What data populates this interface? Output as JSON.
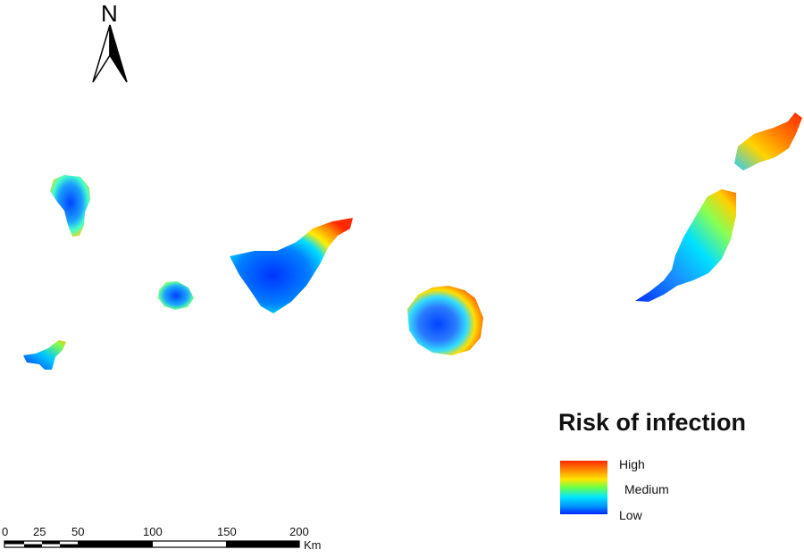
{
  "north_arrow": {
    "letter": "N",
    "icon": "north-arrow-icon"
  },
  "legend": {
    "title": "Risk of infection",
    "high": "High",
    "medium": "Medium",
    "low": "Low",
    "ramp_colors": [
      "#ff2a00",
      "#ff8c00",
      "#ffe600",
      "#6cff4a",
      "#00e6ff",
      "#0094ff",
      "#0026ff"
    ]
  },
  "scale_bar": {
    "ticks": [
      "0",
      "25",
      "50",
      "100",
      "150",
      "200"
    ],
    "unit": "Km"
  },
  "colors": {
    "high": "#ff2a00",
    "medium_high": "#ffcc00",
    "medium": "#44ff88",
    "medium_low": "#00ccff",
    "low": "#0033ff"
  }
}
